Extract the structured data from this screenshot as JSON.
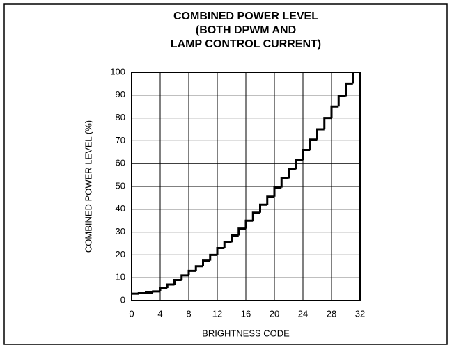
{
  "chart_data": {
    "type": "step",
    "title": [
      "COMBINED POWER LEVEL",
      "(BOTH DPWM AND",
      "LAMP CONTROL CURRENT)"
    ],
    "xlabel": "BRIGHTNESS CODE",
    "ylabel": "COMBINED POWER LEVEL (%)",
    "x": [
      0,
      1,
      2,
      3,
      4,
      5,
      6,
      7,
      8,
      9,
      10,
      11,
      12,
      13,
      14,
      15,
      16,
      17,
      18,
      19,
      20,
      21,
      22,
      23,
      24,
      25,
      26,
      27,
      28,
      29,
      30,
      31
    ],
    "values": [
      3,
      3.2,
      3.5,
      4,
      5.5,
      7,
      9,
      11,
      13,
      15,
      17.5,
      20,
      23,
      25.5,
      28.5,
      31.5,
      35,
      38.5,
      42,
      45.5,
      49.5,
      53.5,
      57.5,
      61.5,
      66,
      70.5,
      75,
      80,
      85,
      89.5,
      95,
      100
    ],
    "color": "#000000",
    "xlim": [
      0,
      32
    ],
    "xticks": [
      0,
      4,
      8,
      12,
      16,
      20,
      24,
      28,
      32
    ],
    "ylim": [
      0,
      100
    ],
    "yticks": [
      0,
      10,
      20,
      30,
      40,
      50,
      60,
      70,
      80,
      90,
      100
    ],
    "grid": true
  }
}
